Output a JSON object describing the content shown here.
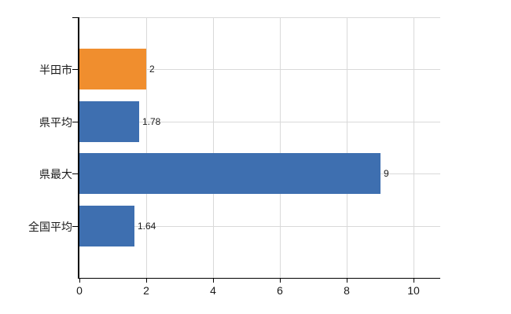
{
  "chart": {
    "background_color": "#ffffff",
    "axis_color": "#000000",
    "grid_color": "#d9d9d9",
    "text_color": "#1a1a1a",
    "accent_orange": "#f08e2e",
    "accent_blue": "#3e6fb0"
  },
  "chart_data": {
    "type": "bar",
    "orientation": "horizontal",
    "title": "",
    "xlabel": "",
    "ylabel": "",
    "categories": [
      "半田市",
      "県平均",
      "県最大",
      "全国平均"
    ],
    "values": [
      2,
      1.78,
      9,
      1.64
    ],
    "value_labels": [
      "2",
      "1.78",
      "9",
      "1.64"
    ],
    "bar_colors": [
      "#f08e2e",
      "#3e6fb0",
      "#3e6fb0",
      "#3e6fb0"
    ],
    "xlim": [
      0,
      10.8
    ],
    "xticks": [
      0,
      2,
      4,
      6,
      8,
      10
    ],
    "grid": true,
    "legend": false
  }
}
